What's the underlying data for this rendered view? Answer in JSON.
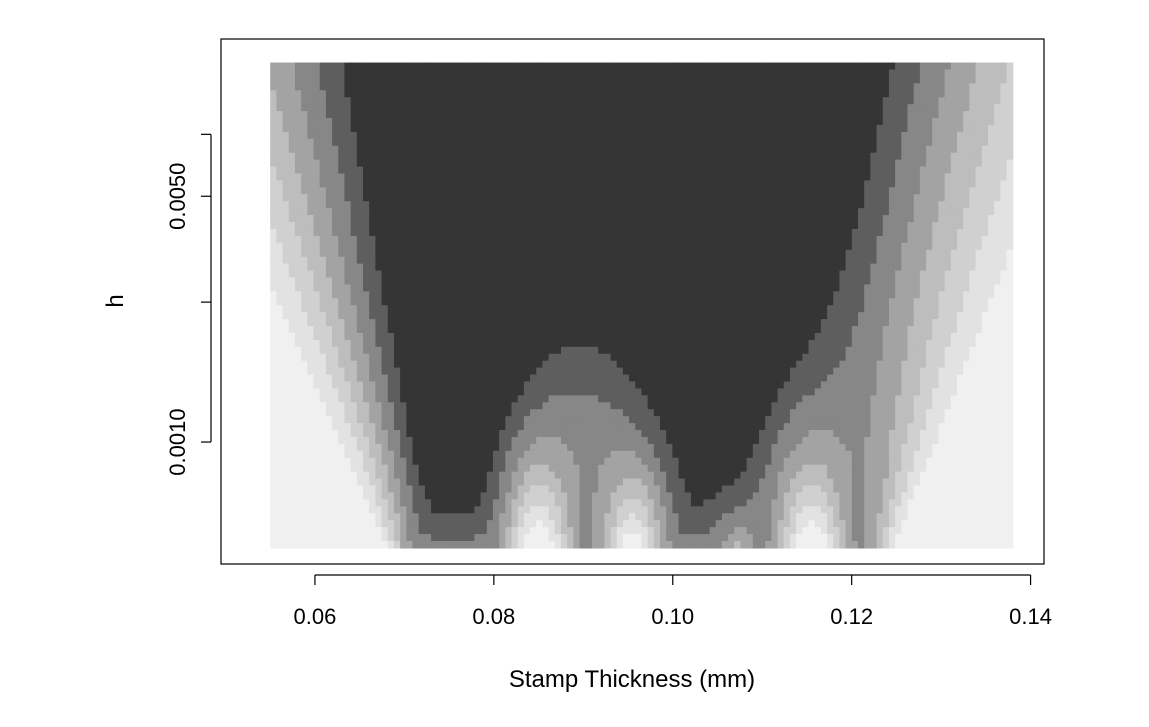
{
  "chart_data": {
    "type": "heatmap",
    "title": "",
    "xlabel": "Stamp Thickness (mm)",
    "ylabel": "h",
    "x_ticks": [
      "0.06",
      "0.08",
      "0.10",
      "0.12",
      "0.14"
    ],
    "y_ticks": [
      "0.0010",
      "0.0050"
    ],
    "xlim": [
      0.0495,
      0.1415
    ],
    "log_y": true,
    "ylim": [
      0.00045,
      0.014
    ],
    "data_x_range": [
      0.055,
      0.138
    ],
    "data_y_range": [
      0.0005,
      0.012
    ],
    "grid": false,
    "legend": "none",
    "colors": {
      "low": "#ffffff",
      "high": "#000000",
      "frame": "#000000"
    },
    "density_peaks": [
      {
        "x": 0.0715,
        "y": 0.0005
      },
      {
        "x": 0.0795,
        "y": 0.0005
      },
      {
        "x": 0.0755,
        "y": 0.0012
      },
      {
        "x": 0.0905,
        "y": 0.0022
      },
      {
        "x": 0.1005,
        "y": 0.0022
      },
      {
        "x": 0.1045,
        "y": 0.006
      },
      {
        "x": 0.11,
        "y": 0.0025
      },
      {
        "x": 0.121,
        "y": 0.003
      }
    ],
    "density_levels": [
      0.0,
      0.08,
      0.16,
      0.26,
      0.38,
      0.52,
      0.68,
      0.85,
      1.0
    ],
    "gray_levels": [
      "#ffffff",
      "#f0f0f0",
      "#e2e2e2",
      "#d0d0d0",
      "#bdbdbd",
      "#a3a3a3",
      "#878787",
      "#5e5e5e",
      "#353535",
      "#000000"
    ]
  }
}
